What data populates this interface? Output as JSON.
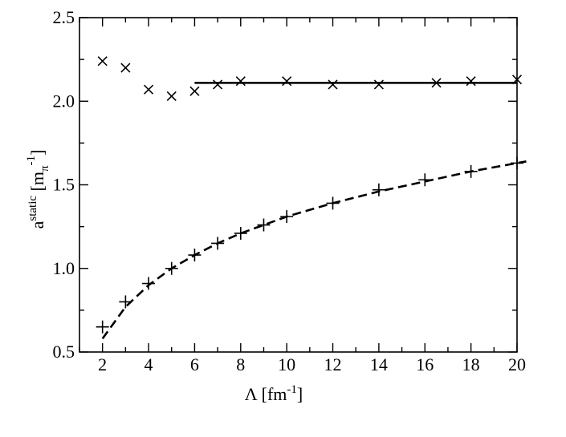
{
  "chart_data": {
    "type": "scatter",
    "xlim": [
      1,
      20
    ],
    "ylim": [
      0.5,
      2.5
    ],
    "x_ticks": [
      2,
      4,
      6,
      8,
      10,
      12,
      14,
      16,
      18,
      20
    ],
    "x_tick_labels": [
      "2",
      "4",
      "6",
      "8",
      "10",
      "12",
      "14",
      "16",
      "18",
      "20"
    ],
    "y_ticks": [
      0.5,
      1.0,
      1.5,
      2.0,
      2.5
    ],
    "y_tick_labels": [
      "0.5",
      "1.0",
      "1.5",
      "2.0",
      "2.5"
    ],
    "xlabel": {
      "main": "Λ [fm",
      "sup": "-1",
      "end": "]"
    },
    "ylabel": {
      "base": "a",
      "sup": "static",
      "open": " [m",
      "sub": "π",
      "sup2": "-1",
      "close": "]"
    },
    "grid": false,
    "series": [
      {
        "marker": "x",
        "points": [
          {
            "x": 2,
            "y": 2.24
          },
          {
            "x": 3,
            "y": 2.2
          },
          {
            "x": 4,
            "y": 2.07
          },
          {
            "x": 5,
            "y": 2.03
          },
          {
            "x": 6,
            "y": 2.06
          },
          {
            "x": 7,
            "y": 2.1
          },
          {
            "x": 8,
            "y": 2.12
          },
          {
            "x": 10,
            "y": 2.12
          },
          {
            "x": 12,
            "y": 2.1
          },
          {
            "x": 14,
            "y": 2.1
          },
          {
            "x": 16.5,
            "y": 2.11
          },
          {
            "x": 18,
            "y": 2.12
          },
          {
            "x": 20,
            "y": 2.13
          }
        ]
      },
      {
        "marker": "+",
        "points": [
          {
            "x": 2,
            "y": 0.65
          },
          {
            "x": 3,
            "y": 0.8
          },
          {
            "x": 4,
            "y": 0.91
          },
          {
            "x": 5,
            "y": 1.0
          },
          {
            "x": 6,
            "y": 1.08
          },
          {
            "x": 7,
            "y": 1.15
          },
          {
            "x": 8,
            "y": 1.21
          },
          {
            "x": 9,
            "y": 1.26
          },
          {
            "x": 10,
            "y": 1.31
          },
          {
            "x": 12,
            "y": 1.39
          },
          {
            "x": 14,
            "y": 1.47
          },
          {
            "x": 16,
            "y": 1.53
          },
          {
            "x": 18,
            "y": 1.58
          },
          {
            "x": 20,
            "y": 1.63
          }
        ]
      },
      {
        "style": "solid",
        "points": [
          {
            "x": 6,
            "y": 2.11
          },
          {
            "x": 20,
            "y": 2.11
          }
        ]
      },
      {
        "style": "dashed",
        "points": [
          {
            "x": 2,
            "y": 0.58
          },
          {
            "x": 3,
            "y": 0.77
          },
          {
            "x": 4,
            "y": 0.9
          },
          {
            "x": 5,
            "y": 1.0
          },
          {
            "x": 6,
            "y": 1.08
          },
          {
            "x": 7,
            "y": 1.15
          },
          {
            "x": 8,
            "y": 1.21
          },
          {
            "x": 10,
            "y": 1.31
          },
          {
            "x": 12,
            "y": 1.39
          },
          {
            "x": 14,
            "y": 1.46
          },
          {
            "x": 16,
            "y": 1.52
          },
          {
            "x": 18,
            "y": 1.58
          },
          {
            "x": 20,
            "y": 1.63
          },
          {
            "x": 20.4,
            "y": 1.64
          }
        ]
      }
    ]
  }
}
